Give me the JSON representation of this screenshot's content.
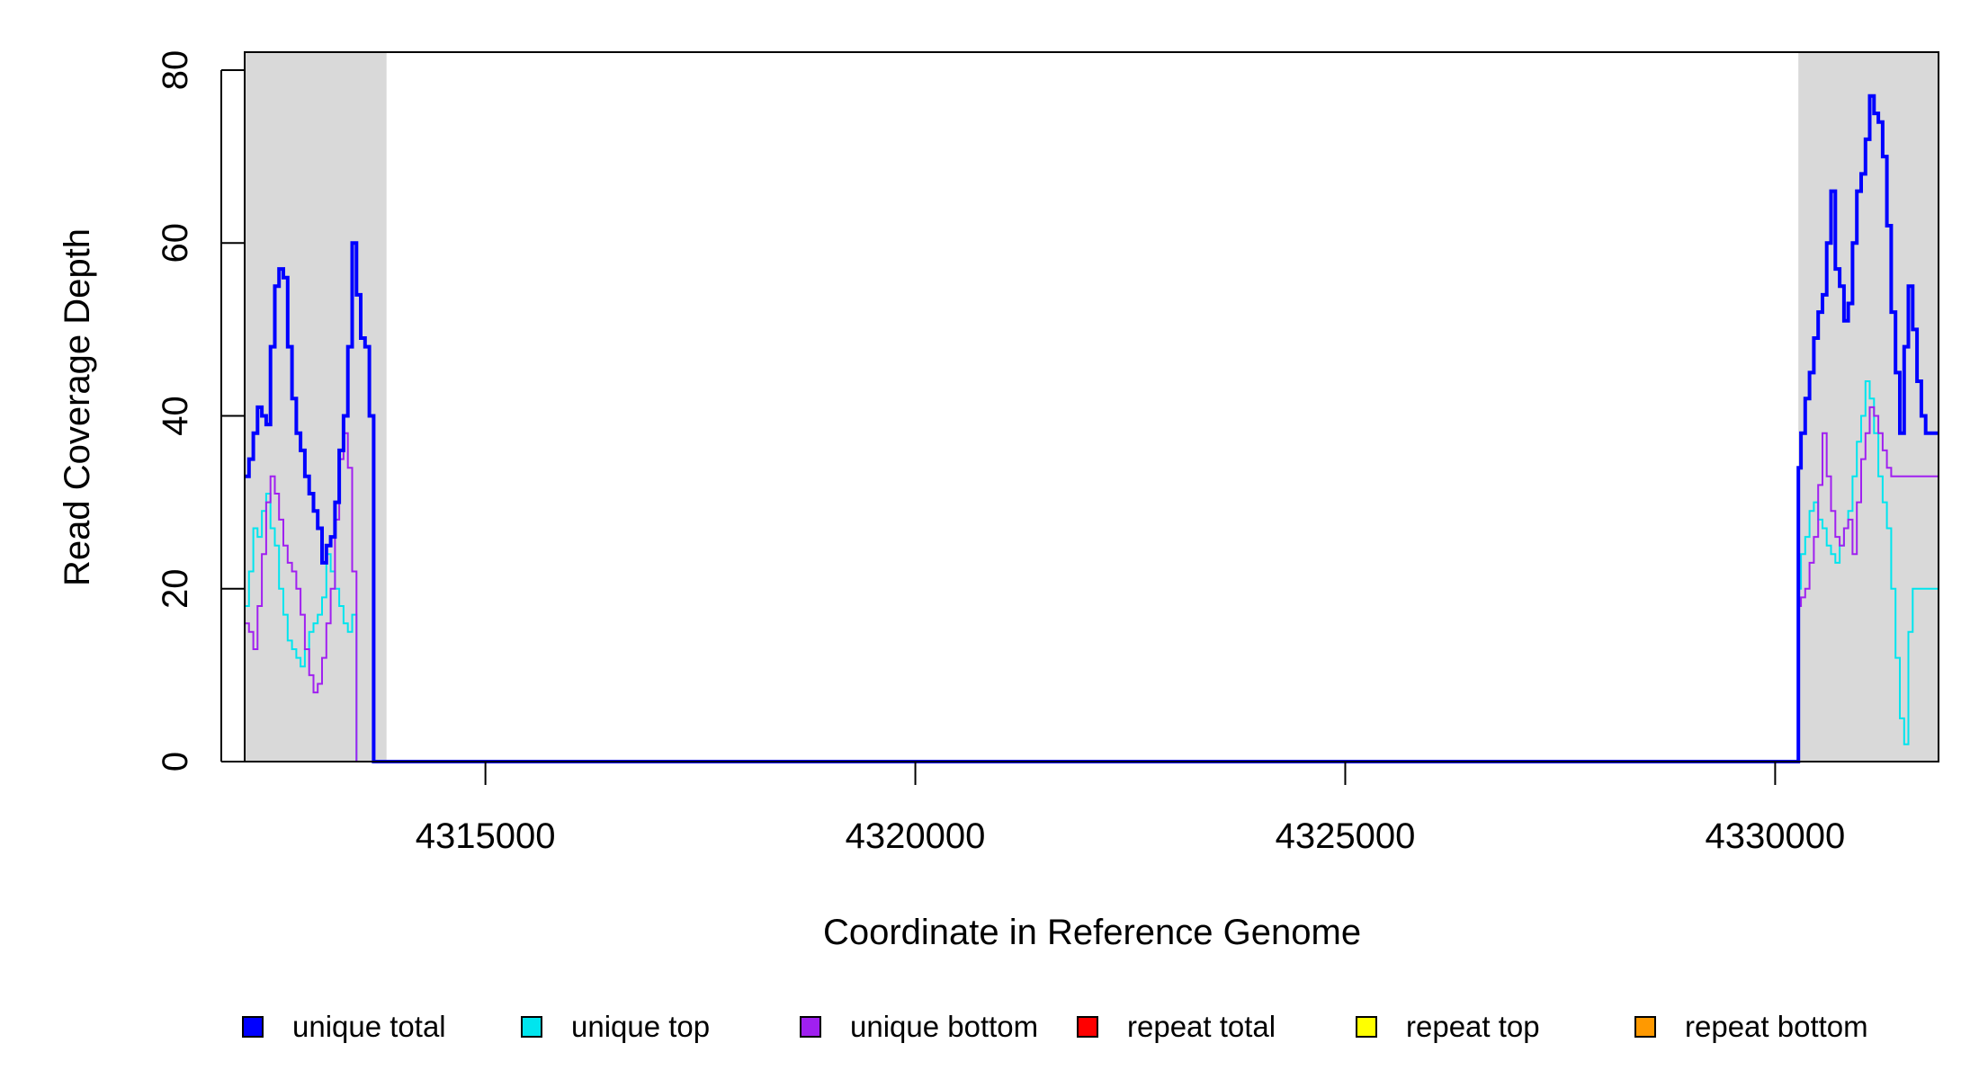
{
  "chart_data": {
    "type": "line",
    "title": "",
    "xlabel": "Coordinate in Reference Genome",
    "ylabel": "Read Coverage Depth",
    "xlim": [
      4312200,
      4331900
    ],
    "ylim": [
      0,
      80
    ],
    "x_ticks": [
      4315000,
      4320000,
      4325000,
      4330000
    ],
    "x_tick_labels": [
      "4315000",
      "4320000",
      "4325000",
      "4330000"
    ],
    "y_ticks": [
      0,
      20,
      40,
      60,
      80
    ],
    "y_tick_labels": [
      "0",
      "20",
      "40",
      "60",
      "80"
    ],
    "grid": false,
    "legend_position": "bottom",
    "shaded_regions": [
      {
        "x0": 4312200,
        "x1": 4313850,
        "color": "#d9d9d9"
      },
      {
        "x0": 4330270,
        "x1": 4331900,
        "color": "#d9d9d9"
      }
    ],
    "series": [
      {
        "name": "unique total",
        "color": "#0000ff",
        "x": [
          4312200,
          4312250,
          4312300,
          4312350,
          4312400,
          4312450,
          4312500,
          4312550,
          4312600,
          4312650,
          4312700,
          4312750,
          4312800,
          4312850,
          4312900,
          4312950,
          4313000,
          4313050,
          4313100,
          4313150,
          4313200,
          4313250,
          4313300,
          4313350,
          4313400,
          4313450,
          4313500,
          4313550,
          4313600,
          4313650,
          4313700,
          4313750,
          4313800,
          4313850,
          4313880,
          4330270,
          4330300,
          4330350,
          4330400,
          4330450,
          4330500,
          4330550,
          4330600,
          4330650,
          4330700,
          4330750,
          4330800,
          4330850,
          4330900,
          4330950,
          4331000,
          4331050,
          4331100,
          4331150,
          4331200,
          4331250,
          4331300,
          4331350,
          4331400,
          4331450,
          4331500,
          4331550,
          4331600,
          4331650,
          4331700,
          4331750,
          4331800,
          4331850,
          4331900
        ],
        "y": [
          33,
          35,
          38,
          41,
          40,
          39,
          48,
          55,
          57,
          56,
          48,
          42,
          38,
          36,
          33,
          31,
          29,
          27,
          23,
          25,
          26,
          30,
          36,
          40,
          48,
          60,
          54,
          49,
          48,
          40,
          0,
          0,
          0,
          0,
          0,
          34,
          38,
          42,
          45,
          49,
          52,
          54,
          60,
          66,
          57,
          55,
          51,
          53,
          60,
          66,
          68,
          72,
          77,
          75,
          74,
          70,
          62,
          52,
          45,
          38,
          48,
          55,
          50,
          44,
          40,
          38,
          38,
          38,
          38
        ]
      },
      {
        "name": "unique top",
        "color": "#00e5ee",
        "x": [
          4312200,
          4312250,
          4312300,
          4312350,
          4312400,
          4312450,
          4312500,
          4312550,
          4312600,
          4312650,
          4312700,
          4312750,
          4312800,
          4312850,
          4312900,
          4312950,
          4313000,
          4313050,
          4313100,
          4313150,
          4313200,
          4313250,
          4313300,
          4313350,
          4313400,
          4313450,
          4313500,
          4313550,
          4313600,
          4313650,
          4313700,
          4313750,
          4313800,
          4313850,
          4313880,
          4330270,
          4330300,
          4330350,
          4330400,
          4330450,
          4330500,
          4330550,
          4330600,
          4330650,
          4330700,
          4330750,
          4330800,
          4330850,
          4330900,
          4330950,
          4331000,
          4331050,
          4331100,
          4331150,
          4331200,
          4331250,
          4331300,
          4331350,
          4331400,
          4331450,
          4331500,
          4331550,
          4331600,
          4331650,
          4331700,
          4331750,
          4331800,
          4331850,
          4331900
        ],
        "y": [
          18,
          22,
          27,
          26,
          29,
          31,
          27,
          25,
          20,
          17,
          14,
          13,
          12,
          11,
          13,
          15,
          16,
          17,
          19,
          24,
          22,
          20,
          18,
          16,
          15,
          17,
          0,
          0,
          0,
          0,
          0,
          0,
          0,
          0,
          0,
          20,
          24,
          26,
          29,
          30,
          28,
          27,
          25,
          24,
          23,
          25,
          27,
          29,
          33,
          37,
          40,
          44,
          42,
          38,
          33,
          30,
          27,
          20,
          12,
          5,
          2,
          15,
          20,
          20,
          20,
          20,
          20,
          20,
          20
        ]
      },
      {
        "name": "unique bottom",
        "color": "#a020f0",
        "x": [
          4312200,
          4312250,
          4312300,
          4312350,
          4312400,
          4312450,
          4312500,
          4312550,
          4312600,
          4312650,
          4312700,
          4312750,
          4312800,
          4312850,
          4312900,
          4312950,
          4313000,
          4313050,
          4313100,
          4313150,
          4313200,
          4313250,
          4313300,
          4313350,
          4313400,
          4313450,
          4313500,
          4313550,
          4313600,
          4313650,
          4313700,
          4313750,
          4313800,
          4313850,
          4313880,
          4330270,
          4330300,
          4330350,
          4330400,
          4330450,
          4330500,
          4330550,
          4330600,
          4330650,
          4330700,
          4330750,
          4330800,
          4330850,
          4330900,
          4330950,
          4331000,
          4331050,
          4331100,
          4331150,
          4331200,
          4331250,
          4331300,
          4331350,
          4331400,
          4331450,
          4331500,
          4331550,
          4331600,
          4331650,
          4331700,
          4331750,
          4331800,
          4331850,
          4331900
        ],
        "y": [
          16,
          15,
          13,
          18,
          24,
          30,
          33,
          31,
          28,
          25,
          23,
          22,
          20,
          17,
          13,
          10,
          8,
          9,
          12,
          16,
          20,
          28,
          35,
          38,
          34,
          22,
          0,
          0,
          0,
          0,
          0,
          0,
          0,
          0,
          0,
          18,
          19,
          20,
          23,
          26,
          32,
          38,
          33,
          29,
          26,
          25,
          27,
          28,
          24,
          30,
          35,
          38,
          41,
          40,
          38,
          36,
          34,
          33,
          33,
          33,
          33,
          33,
          33,
          33,
          33,
          33,
          33,
          33,
          33
        ]
      },
      {
        "name": "repeat total",
        "color": "#ff0000",
        "y": [
          0
        ]
      },
      {
        "name": "repeat top",
        "color": "#ffff00",
        "y": [
          0
        ]
      },
      {
        "name": "repeat bottom",
        "color": "#ff9900",
        "y": [
          0
        ]
      }
    ]
  }
}
